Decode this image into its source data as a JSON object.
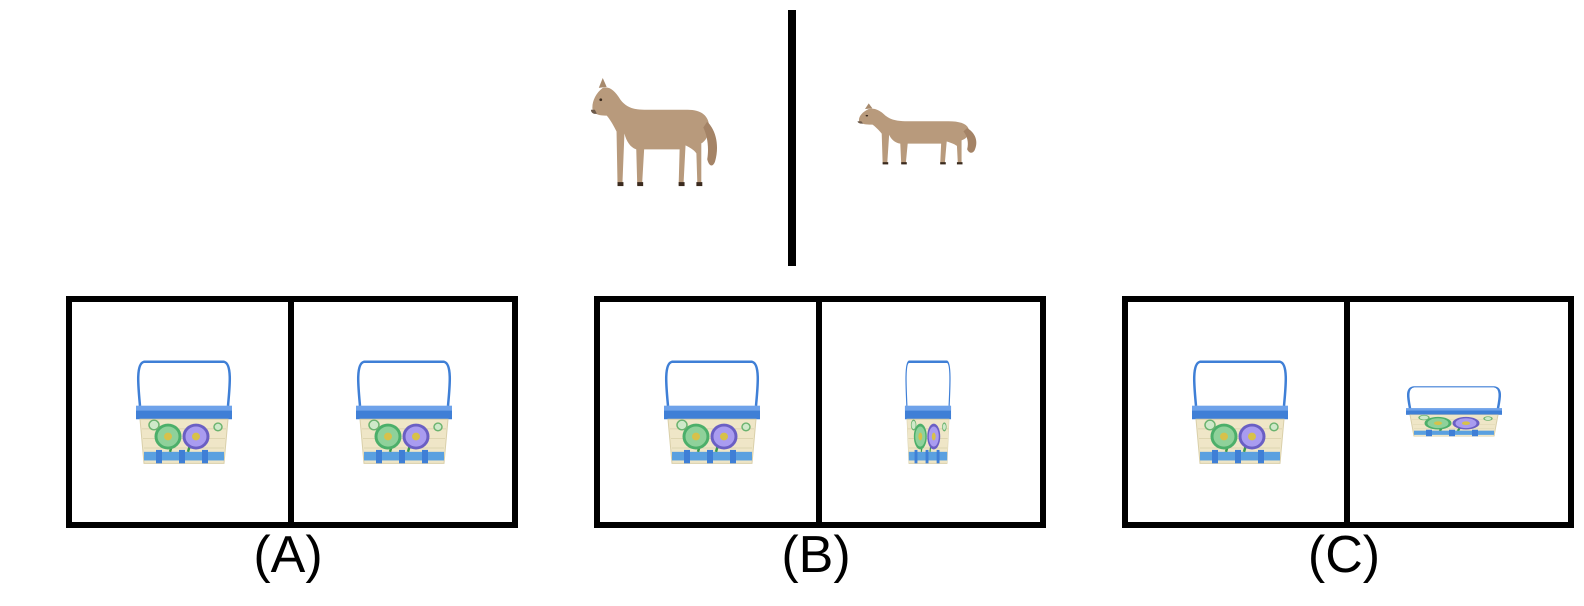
{
  "options": [
    {
      "id": "A",
      "label": "(A)"
    },
    {
      "id": "B",
      "label": "(B)"
    },
    {
      "id": "C",
      "label": "(C)"
    }
  ],
  "colors": {
    "horse": "#b89a7c",
    "basket_rim": "#3f7fd6",
    "basket_weave": "#efe6c7",
    "flower_green": "#4caf6a",
    "flower_purple": "#7a6fd0",
    "frame": "#000000"
  },
  "icons": [
    "horse-icon",
    "basket-icon"
  ]
}
